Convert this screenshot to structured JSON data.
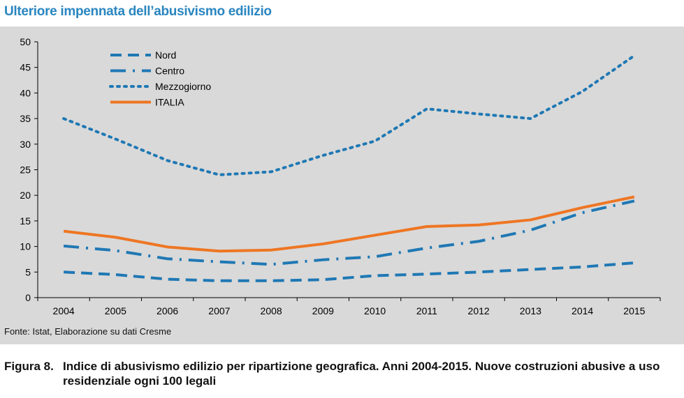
{
  "title": "Ulteriore impennata dell’abusivismo edilizio",
  "source": "Fonte: Istat, Elaborazione su dati Cresme",
  "caption": {
    "label": "Figura 8.",
    "text": "Indice di abusivismo edilizio per ripartizione geografica. Anni 2004-2015. Nuove costruzioni abusive a uso residenziale ogni 100 legali"
  },
  "colors": {
    "blue": "#1f78b4",
    "orange": "#ee7623",
    "panel": "#d9d9d9",
    "title": "#2a86c0"
  },
  "chart_data": {
    "type": "line",
    "title": "Ulteriore impennata dell’abusivismo edilizio",
    "xlabel": "",
    "ylabel": "",
    "categories": [
      "2004",
      "2005",
      "2006",
      "2007",
      "2008",
      "2009",
      "2010",
      "2011",
      "2012",
      "2013",
      "2014",
      "2015"
    ],
    "ylim": [
      0,
      50
    ],
    "yticks": [
      0,
      5,
      10,
      15,
      20,
      25,
      30,
      35,
      40,
      45,
      50
    ],
    "grid": false,
    "legend_position": "top-left",
    "series": [
      {
        "name": "Nord",
        "style": "dashed",
        "color": "#1f78b4",
        "values": [
          5.0,
          4.5,
          3.6,
          3.3,
          3.3,
          3.5,
          4.3,
          4.6,
          5.0,
          5.5,
          6.0,
          6.8
        ]
      },
      {
        "name": "Centro",
        "style": "dashdot",
        "color": "#1f78b4",
        "values": [
          10.1,
          9.2,
          7.6,
          7.0,
          6.5,
          7.4,
          8.0,
          9.7,
          11.0,
          13.2,
          16.6,
          18.9
        ]
      },
      {
        "name": "Mezzogiorno",
        "style": "dotted",
        "color": "#1f78b4",
        "values": [
          35.0,
          31.0,
          26.8,
          24.0,
          24.6,
          27.8,
          30.6,
          36.9,
          35.9,
          35.0,
          40.3,
          47.3
        ]
      },
      {
        "name": "ITALIA",
        "style": "solid",
        "color": "#ee7623",
        "values": [
          13.0,
          11.8,
          9.9,
          9.1,
          9.3,
          10.5,
          12.2,
          13.9,
          14.2,
          15.2,
          17.6,
          19.7
        ]
      }
    ]
  }
}
